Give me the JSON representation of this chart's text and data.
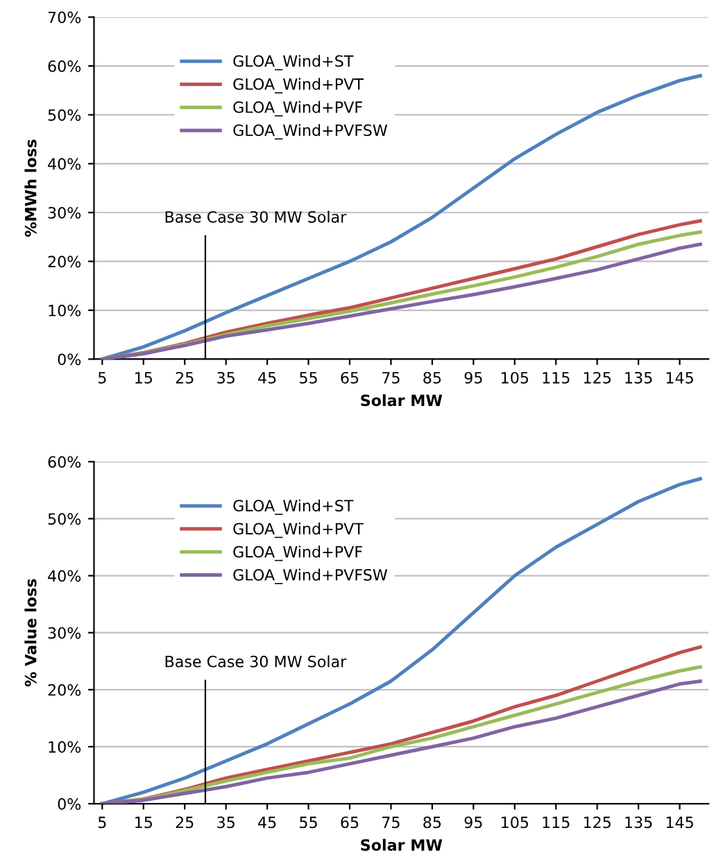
{
  "chart_data": [
    {
      "type": "line",
      "xlabel": "Solar MW",
      "ylabel": "%MWh loss",
      "x": [
        5,
        15,
        25,
        35,
        45,
        55,
        65,
        75,
        85,
        95,
        105,
        115,
        125,
        135,
        145,
        150
      ],
      "series": [
        {
          "name": "GLOA_Wind+ST",
          "color": "#4f81bd",
          "values": [
            0,
            2.5,
            5.8,
            9.5,
            13,
            16.5,
            20,
            24,
            29,
            35,
            41,
            46,
            50.5,
            54,
            57,
            58
          ]
        },
        {
          "name": "GLOA_Wind+PVT",
          "color": "#c0504d",
          "values": [
            0,
            1.3,
            3.2,
            5.5,
            7.3,
            9,
            10.5,
            12.5,
            14.5,
            16.5,
            18.5,
            20.5,
            23,
            25.5,
            27.5,
            28.3
          ]
        },
        {
          "name": "GLOA_Wind+PVF",
          "color": "#9bbb59",
          "values": [
            0,
            1.2,
            3,
            5,
            6.8,
            8.3,
            9.8,
            11.5,
            13.3,
            15,
            16.8,
            18.8,
            21,
            23.5,
            25.3,
            26
          ]
        },
        {
          "name": "GLOA_Wind+PVFSW",
          "color": "#8064a2",
          "values": [
            0,
            1.1,
            2.8,
            4.7,
            6,
            7.3,
            8.8,
            10.3,
            11.8,
            13.2,
            14.8,
            16.5,
            18.3,
            20.5,
            22.7,
            23.5
          ]
        }
      ],
      "xlim": [
        3,
        152
      ],
      "xticks": [
        5,
        15,
        25,
        35,
        45,
        55,
        65,
        75,
        85,
        95,
        105,
        115,
        125,
        135,
        145
      ],
      "ylim": [
        0,
        70
      ],
      "yticks": [
        {
          "value": 0,
          "label": "0%"
        },
        {
          "value": 10,
          "label": "10%"
        },
        {
          "value": 20,
          "label": "20%"
        },
        {
          "value": 30,
          "label": "30%"
        },
        {
          "value": 40,
          "label": "40%"
        },
        {
          "value": 50,
          "label": "50%"
        },
        {
          "value": 60,
          "label": "60%"
        },
        {
          "value": 70,
          "label": "70%"
        }
      ],
      "ref_lines": [
        {
          "axis": "x",
          "value": 30,
          "label": "Base Case 30 MW Solar",
          "color": "#000000"
        }
      ],
      "grid": "y",
      "legend": "top left",
      "marker": "none",
      "line_style": "solid"
    },
    {
      "type": "line",
      "xlabel": "Solar MW",
      "ylabel": "% Value loss",
      "x": [
        5,
        15,
        25,
        35,
        45,
        55,
        65,
        75,
        85,
        95,
        105,
        115,
        125,
        135,
        145,
        150
      ],
      "series": [
        {
          "name": "GLOA_Wind+ST",
          "color": "#4f81bd",
          "values": [
            0,
            2,
            4.5,
            7.5,
            10.5,
            14,
            17.5,
            21.5,
            27,
            33.5,
            40,
            45,
            49,
            53,
            56,
            57
          ]
        },
        {
          "name": "GLOA_Wind+PVT",
          "color": "#c0504d",
          "values": [
            0,
            0.8,
            2.5,
            4.5,
            6,
            7.5,
            9,
            10.5,
            12.5,
            14.5,
            17,
            19,
            21.5,
            24,
            26.5,
            27.5
          ]
        },
        {
          "name": "GLOA_Wind+PVF",
          "color": "#9bbb59",
          "values": [
            0,
            0.7,
            2.3,
            4,
            5.5,
            7,
            8,
            10,
            11.5,
            13.5,
            15.5,
            17.5,
            19.5,
            21.5,
            23.3,
            24
          ]
        },
        {
          "name": "GLOA_Wind+PVFSW",
          "color": "#8064a2",
          "values": [
            0,
            0.6,
            1.8,
            3,
            4.5,
            5.5,
            7,
            8.5,
            10,
            11.5,
            13.5,
            15,
            17,
            19,
            21,
            21.5
          ]
        }
      ],
      "xlim": [
        3,
        152
      ],
      "xticks": [
        5,
        15,
        25,
        35,
        45,
        55,
        65,
        75,
        85,
        95,
        105,
        115,
        125,
        135,
        145
      ],
      "ylim": [
        0,
        60
      ],
      "yticks": [
        {
          "value": 0,
          "label": "0%"
        },
        {
          "value": 10,
          "label": "10%"
        },
        {
          "value": 20,
          "label": "20%"
        },
        {
          "value": 30,
          "label": "30%"
        },
        {
          "value": 40,
          "label": "40%"
        },
        {
          "value": 50,
          "label": "50%"
        },
        {
          "value": 60,
          "label": "60%"
        }
      ],
      "ref_lines": [
        {
          "axis": "x",
          "value": 30,
          "label": "Base Case 30 MW Solar",
          "color": "#000000"
        }
      ],
      "grid": "y",
      "legend": "top left",
      "marker": "none",
      "line_style": "solid"
    }
  ]
}
